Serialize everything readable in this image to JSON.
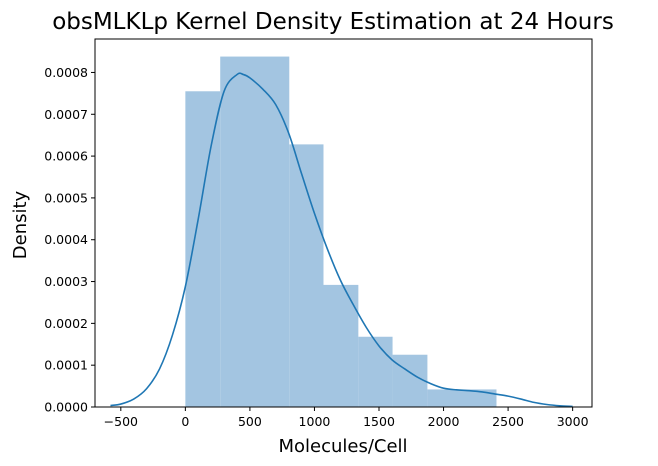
{
  "chart_data": {
    "type": "histogram",
    "title": "obsMLKLp Kernel Density Estimation at 24 Hours",
    "xlabel": "Molecules/Cell",
    "ylabel": "Density",
    "xlim": [
      -700,
      3150
    ],
    "ylim": [
      0,
      0.00088
    ],
    "xticks": [
      -500,
      0,
      500,
      1000,
      1500,
      2000,
      2500,
      3000
    ],
    "xtick_labels": [
      "−500",
      "0",
      "500",
      "1000",
      "1500",
      "2000",
      "2500",
      "3000"
    ],
    "yticks": [
      0,
      0.0001,
      0.0002,
      0.0003,
      0.0004,
      0.0005,
      0.0006,
      0.0007,
      0.0008
    ],
    "ytick_labels": [
      "0.0000",
      "0.0001",
      "0.0002",
      "0.0003",
      "0.0004",
      "0.0005",
      "0.0006",
      "0.0007",
      "0.0008"
    ],
    "bins": [
      {
        "x0": 0,
        "x1": 270,
        "density": 0.000755
      },
      {
        "x0": 270,
        "x1": 805,
        "density": 0.000838
      },
      {
        "x0": 805,
        "x1": 1070,
        "density": 0.000628
      },
      {
        "x0": 1070,
        "x1": 1340,
        "density": 0.000292
      },
      {
        "x0": 1340,
        "x1": 1605,
        "density": 0.000168
      },
      {
        "x0": 1605,
        "x1": 1875,
        "density": 0.000125
      },
      {
        "x0": 1875,
        "x1": 2410,
        "density": 4.2e-05
      }
    ],
    "kde": {
      "x": [
        -580,
        -500,
        -400,
        -300,
        -200,
        -100,
        0,
        100,
        200,
        300,
        400,
        450,
        500,
        600,
        700,
        800,
        900,
        1000,
        1100,
        1200,
        1300,
        1400,
        1500,
        1600,
        1700,
        1800,
        1900,
        2000,
        2100,
        2200,
        2300,
        2400,
        2500,
        2600,
        2700,
        2800,
        2900,
        3000
      ],
      "y": [
        3.5e-06,
        7e-06,
        1.9e-05,
        4.4e-05,
        9.1e-05,
        0.000172,
        0.000288,
        0.00045,
        0.000625,
        0.000755,
        0.000795,
        0.000795,
        0.000787,
        0.00076,
        0.000723,
        0.000655,
        0.000558,
        0.000463,
        0.000378,
        0.000304,
        0.000245,
        0.000191,
        0.000146,
        0.000113,
        9.1e-05,
        7.1e-05,
        5.6e-05,
        4.5e-05,
        4.1e-05,
        3.9e-05,
        3.6e-05,
        3.1e-05,
        2.6e-05,
        1.9e-05,
        1.1e-05,
        6e-06,
        3e-06,
        1.5e-06
      ]
    },
    "colors": {
      "bars": "#a3c5e1",
      "kde": "#1f77b4"
    },
    "grid": false
  }
}
